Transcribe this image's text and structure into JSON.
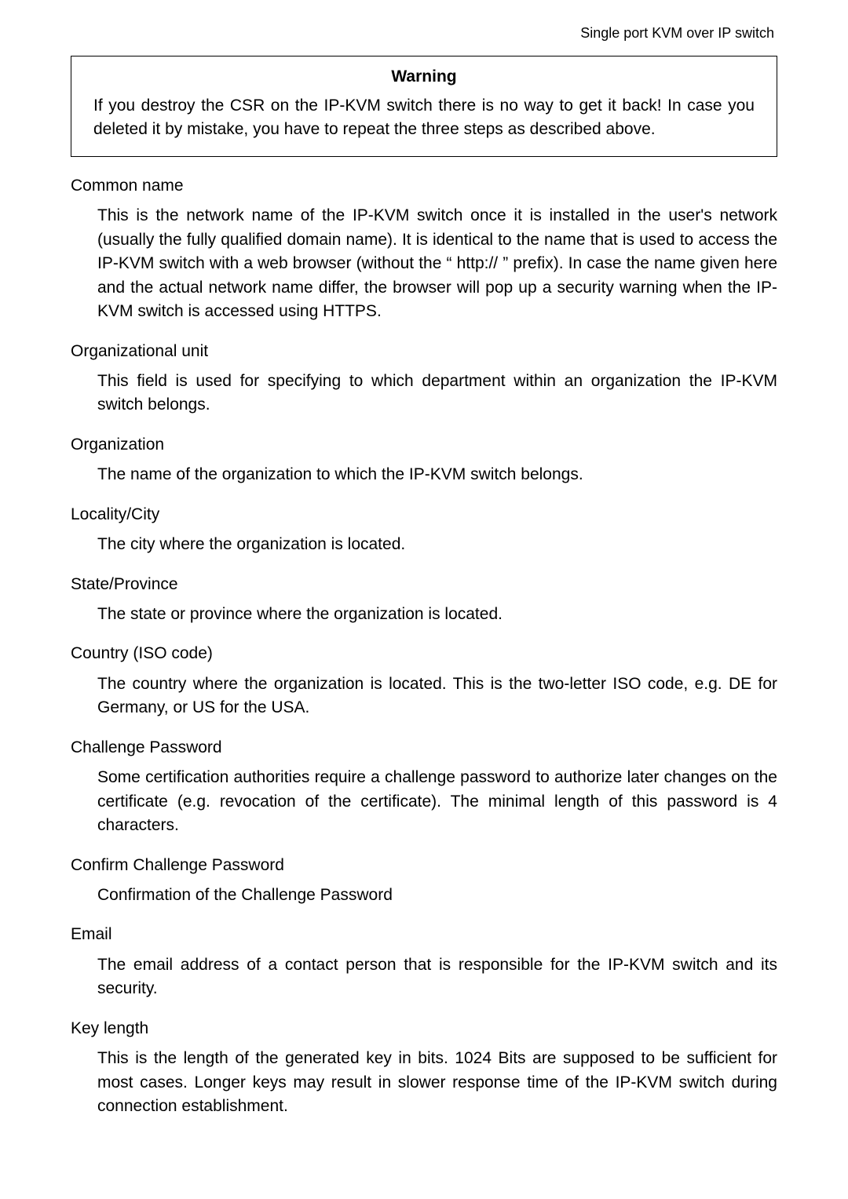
{
  "header": {
    "text": "Single port KVM over IP switch"
  },
  "warning": {
    "title": "Warning",
    "body": "If you destroy the CSR on the IP-KVM switch there is no way to get it back! In case you deleted it by mistake, you have to repeat the three steps as described above."
  },
  "sections": [
    {
      "term": "Common name",
      "def": "This is the network name of the IP-KVM switch once it is installed in the user's network (usually the fully qualified domain name). It is identical to the name that is used to access the IP-KVM switch with a web browser (without the “ http:// ” prefix). In case the name given here and the actual network name differ, the browser will pop up a security warning when the IP-KVM switch is accessed using HTTPS."
    },
    {
      "term": "Organizational unit",
      "def": "This field is used for specifying to which department within an organization the IP-KVM switch belongs."
    },
    {
      "term": "Organization",
      "def": "The name of the organization to which the IP-KVM switch belongs."
    },
    {
      "term": "Locality/City",
      "def": "The city where the organization is located."
    },
    {
      "term": "State/Province",
      "def": "The state or province where the organization is located."
    },
    {
      "term": "Country (ISO code)",
      "def": "The country where the organization is located. This is the two-letter ISO code, e.g. DE for Germany, or US for the USA."
    },
    {
      "term": "Challenge Password",
      "def": "Some certification authorities require a challenge password to authorize later changes on the certificate (e.g. revocation of the certificate). The minimal length of this password is 4 characters."
    },
    {
      "term": "Confirm Challenge Password",
      "def": "Confirmation of the Challenge Password"
    },
    {
      "term": "Email",
      "def": "The email address of a contact person that is responsible for the IP-KVM switch and its security."
    },
    {
      "term": "Key length",
      "def": "This is the length of the generated key in bits. 1024 Bits are supposed to be sufficient for most cases. Longer keys may result in slower response time of the IP-KVM switch during connection establishment."
    }
  ]
}
